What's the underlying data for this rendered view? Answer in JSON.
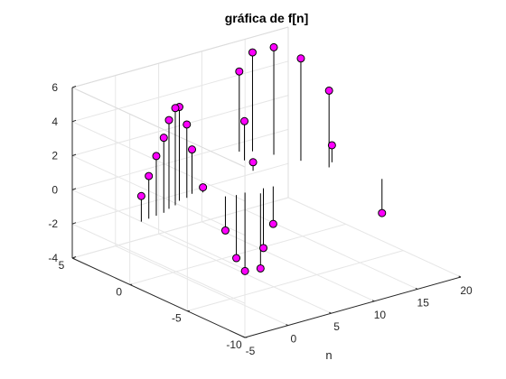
{
  "chart_data": {
    "type": "scatter",
    "subtype": "stem3",
    "title": "gráfica de f[n]",
    "xlabel": "n",
    "ylabel": "",
    "zlabel": "",
    "xlim": [
      -5,
      20
    ],
    "ylim": [
      -10,
      5
    ],
    "zlim": [
      -4,
      6
    ],
    "x_ticks": [
      -5,
      0,
      5,
      10,
      15,
      20
    ],
    "y_ticks": [
      -10,
      -5,
      0,
      5
    ],
    "z_ticks": [
      -4,
      -2,
      0,
      2,
      4,
      6
    ],
    "x_tick_labels": [
      "-5",
      "0",
      "5",
      "10",
      "15",
      "20"
    ],
    "y_tick_labels": [
      "-10",
      "-5",
      "0",
      "5"
    ],
    "z_tick_labels": [
      "-4",
      "-2",
      "0",
      "2",
      "4",
      "6"
    ],
    "grid": true,
    "box": true,
    "marker_color": "#ff00ff",
    "marker_edge_color": "#000000",
    "stem_color": "#000000",
    "points": [
      {
        "n": -5,
        "re": 1.5,
        "im": -1.0
      },
      {
        "n": -4,
        "re": 2.5,
        "im": -0.9
      },
      {
        "n": -3,
        "re": 3.5,
        "im": -0.8
      },
      {
        "n": -2,
        "re": 4.4,
        "im": -0.7
      },
      {
        "n": -1,
        "re": 5.2,
        "im": -0.4
      },
      {
        "n": 0,
        "re": 5.7,
        "im": -0.2
      },
      {
        "n": 1,
        "re": 5.5,
        "im": 0.2
      },
      {
        "n": 2,
        "re": 4.3,
        "im": 0.3
      },
      {
        "n": 3,
        "re": 2.6,
        "im": 0.6
      },
      {
        "n": 4,
        "re": 0.3,
        "im": 0.4
      },
      {
        "n": 5,
        "re": -2.0,
        "im": -0.8
      },
      {
        "n": 6,
        "re": -3.7,
        "im": -1.0
      },
      {
        "n": 7,
        "re": -4.6,
        "im": -1.0
      },
      {
        "n": 8,
        "re": -4.4,
        "im": -1.6
      },
      {
        "n": 9,
        "re": -3.5,
        "im": -1.1
      },
      {
        "n": 10,
        "re": -2.2,
        "im": -1.2
      },
      {
        "n": 11,
        "re": 0.5,
        "im": 1.3
      },
      {
        "n": 12,
        "re": 2.3,
        "im": 2.8
      },
      {
        "n": 13,
        "re": 4.7,
        "im": 4.0
      },
      {
        "n": 14,
        "re": 5.8,
        "im": 3.6
      },
      {
        "n": 15,
        "re": 6.3,
        "im": 2.5
      },
      {
        "n": 16,
        "re": 6.0,
        "im": 0.9
      },
      {
        "n": 17,
        "re": 4.5,
        "im": -0.8
      },
      {
        "n": 18,
        "re": 1.0,
        "im": -0.3
      },
      {
        "n": 19,
        "re": -2.0,
        "im": -3.9
      }
    ]
  }
}
